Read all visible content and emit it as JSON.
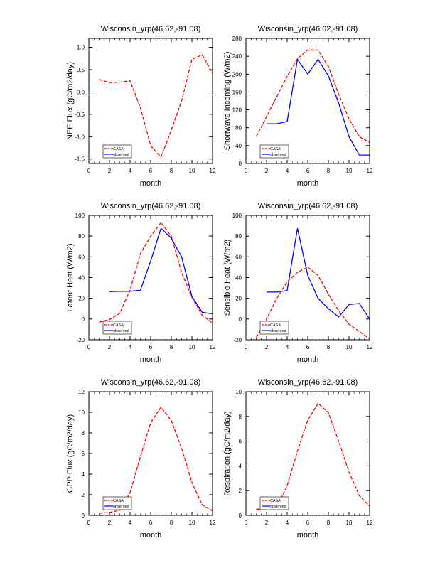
{
  "chart_data": [
    {
      "type": "line",
      "title": "Wisconsin_yrp(46.62,-91.08)",
      "xlabel": "month",
      "ylabel": "NEE Flux (gC/m2/day)",
      "xlim": [
        0,
        12
      ],
      "ylim": [
        -1.6,
        1.2
      ],
      "xticks": [
        0,
        2,
        4,
        6,
        8,
        10,
        12
      ],
      "yticks": [
        -1.5,
        -1.0,
        -0.5,
        0.0,
        0.5,
        1.0
      ],
      "ytick_labels": [
        "-1.5",
        "-1.0",
        "-0.5",
        "0.0",
        "0.5",
        "1.0"
      ],
      "legend": {
        "position": "bottom-left",
        "entries": [
          "CASA",
          "observed"
        ]
      },
      "series": [
        {
          "name": "CASA",
          "color": "#ff0000",
          "dash": true,
          "x": [
            1,
            2,
            3,
            4,
            5,
            6,
            7,
            8,
            9,
            10,
            11,
            12
          ],
          "y": [
            0.28,
            0.21,
            0.22,
            0.25,
            -0.35,
            -1.2,
            -1.46,
            -0.85,
            -0.2,
            0.73,
            0.83,
            0.42
          ]
        },
        {
          "name": "observed",
          "color": "#0000ff",
          "dash": false,
          "x": [],
          "y": []
        }
      ]
    },
    {
      "type": "line",
      "title": "Wisconsin_yrp(46.62,-91.08)",
      "xlabel": "month",
      "ylabel": "Shortwave Incoming (W/m2)",
      "xlim": [
        0,
        12
      ],
      "ylim": [
        0,
        280
      ],
      "xticks": [
        0,
        2,
        4,
        6,
        8,
        10,
        12
      ],
      "yticks": [
        0,
        40,
        80,
        120,
        160,
        200,
        240,
        280
      ],
      "ytick_labels": [
        "0",
        "40",
        "80",
        "120",
        "160",
        "200",
        "240",
        "280"
      ],
      "legend": {
        "position": "bottom-left",
        "entries": [
          "CASA",
          "observed"
        ]
      },
      "series": [
        {
          "name": "CASA",
          "color": "#ff0000",
          "dash": true,
          "x": [
            1,
            2,
            3,
            4,
            5,
            6,
            7,
            8,
            9,
            10,
            11,
            12
          ],
          "y": [
            60,
            105,
            150,
            195,
            235,
            254,
            254,
            217,
            155,
            100,
            60,
            47
          ]
        },
        {
          "name": "observed",
          "color": "#0000ff",
          "dash": false,
          "x": [
            2,
            3,
            4,
            5,
            6,
            7,
            8,
            9,
            10,
            11,
            12
          ],
          "y": [
            89,
            89,
            94,
            233,
            200,
            233,
            196,
            135,
            60,
            19,
            19
          ]
        }
      ]
    },
    {
      "type": "line",
      "title": "Wisconsin_yrp(46.62,-91.08)",
      "xlabel": "month",
      "ylabel": "Latent Heat (W/m2)",
      "xlim": [
        0,
        12
      ],
      "ylim": [
        -20,
        100
      ],
      "xticks": [
        0,
        2,
        4,
        6,
        8,
        10,
        12
      ],
      "yticks": [
        -20,
        0,
        20,
        40,
        60,
        80,
        100
      ],
      "ytick_labels": [
        "-20",
        "0",
        "20",
        "40",
        "60",
        "80",
        "100"
      ],
      "legend": {
        "position": "bottom-left",
        "entries": [
          "CASA",
          "observed"
        ]
      },
      "series": [
        {
          "name": "CASA",
          "color": "#ff0000",
          "dash": true,
          "x": [
            1,
            2,
            3,
            4,
            5,
            6,
            7,
            8,
            9,
            10,
            11,
            12
          ],
          "y": [
            -3,
            -0.5,
            5.5,
            28,
            63,
            80,
            93,
            80,
            45,
            21,
            3.5,
            -4
          ]
        },
        {
          "name": "observed",
          "color": "#0000ff",
          "dash": false,
          "x": [
            2,
            3,
            4,
            5,
            6,
            7,
            8,
            9,
            10,
            11,
            12
          ],
          "y": [
            26.5,
            26.8,
            26.8,
            27.8,
            56,
            87.5,
            78,
            60,
            22,
            6.5,
            5
          ]
        }
      ]
    },
    {
      "type": "line",
      "title": "Wisconsin_yrp(46.62,-91.08)",
      "xlabel": "month",
      "ylabel": "Sensible Heat (W/m2)",
      "xlim": [
        0,
        12
      ],
      "ylim": [
        -20,
        100
      ],
      "xticks": [
        0,
        2,
        4,
        6,
        8,
        10,
        12
      ],
      "yticks": [
        -20,
        0,
        20,
        40,
        60,
        80,
        100
      ],
      "ytick_labels": [
        "-20",
        "0",
        "20",
        "40",
        "60",
        "80",
        "100"
      ],
      "legend": {
        "position": "bottom-left",
        "entries": [
          "CASA",
          "observed"
        ]
      },
      "series": [
        {
          "name": "CASA",
          "color": "#ff0000",
          "dash": true,
          "x": [
            1,
            2,
            3,
            4,
            5,
            6,
            7,
            8,
            9,
            10,
            11,
            12
          ],
          "y": [
            -18,
            0,
            20,
            36,
            45,
            50,
            42,
            24,
            8,
            -5,
            -12,
            -19
          ]
        },
        {
          "name": "observed",
          "color": "#0000ff",
          "dash": false,
          "x": [
            2,
            3,
            4,
            5,
            6,
            7,
            8,
            9,
            10,
            11,
            12
          ],
          "y": [
            26,
            26,
            27.5,
            87.5,
            42,
            20,
            10,
            2,
            14,
            15,
            0
          ]
        }
      ]
    },
    {
      "type": "line",
      "title": "Wisconsin_yrp(46.62,-91.08)",
      "xlabel": "month",
      "ylabel": "GPP Flux (gC/m2/day)",
      "xlim": [
        0,
        12
      ],
      "ylim": [
        0,
        12
      ],
      "xticks": [
        0,
        2,
        4,
        6,
        8,
        10,
        12
      ],
      "yticks": [
        0,
        2,
        4,
        6,
        8,
        10,
        12
      ],
      "ytick_labels": [
        "0",
        "2",
        "4",
        "6",
        "8",
        "10",
        "12"
      ],
      "legend": {
        "position": "bottom-left",
        "entries": [
          "CASA",
          "observed"
        ]
      },
      "series": [
        {
          "name": "CASA",
          "color": "#ff0000",
          "dash": true,
          "x": [
            1,
            2,
            3,
            4,
            5,
            6,
            7,
            8,
            9,
            10,
            11,
            12
          ],
          "y": [
            0.2,
            0.28,
            0.5,
            2.2,
            5.7,
            9.0,
            10.5,
            9.2,
            6.5,
            3.2,
            1.0,
            0.45
          ]
        },
        {
          "name": "observed",
          "color": "#0000ff",
          "dash": false,
          "x": [],
          "y": []
        }
      ]
    },
    {
      "type": "line",
      "title": "Wisconsin_yrp(46.62,-91.08)",
      "xlabel": "month",
      "ylabel": "Respiration (gC/m2/day)",
      "xlim": [
        0,
        12
      ],
      "ylim": [
        0,
        10
      ],
      "xticks": [
        0,
        2,
        4,
        6,
        8,
        10,
        12
      ],
      "yticks": [
        0,
        2,
        4,
        6,
        8,
        10
      ],
      "ytick_labels": [
        "0",
        "2",
        "4",
        "6",
        "8",
        "10"
      ],
      "legend": {
        "position": "bottom-left",
        "entries": [
          "CASA",
          "observed"
        ]
      },
      "series": [
        {
          "name": "CASA",
          "color": "#ff0000",
          "dash": true,
          "x": [
            1,
            2,
            3,
            4,
            5,
            6,
            7,
            8,
            9,
            10,
            11,
            12
          ],
          "y": [
            0.5,
            0.5,
            0.68,
            2.4,
            5.2,
            7.7,
            9.05,
            8.3,
            6.0,
            3.5,
            1.6,
            0.75
          ]
        },
        {
          "name": "observed",
          "color": "#0000ff",
          "dash": false,
          "x": [],
          "y": []
        }
      ]
    }
  ]
}
